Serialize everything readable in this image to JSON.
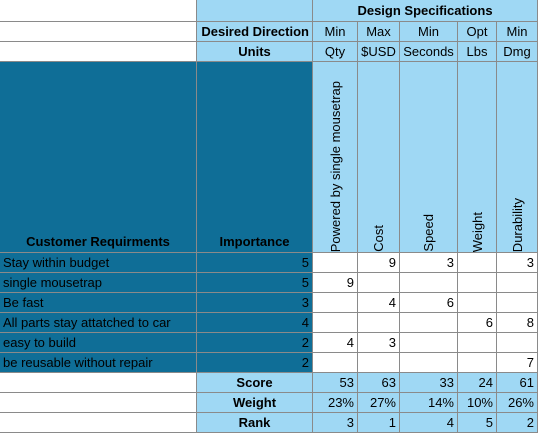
{
  "header": {
    "title": "Design Specifications",
    "direction_label": "Desired Direction",
    "units_label": "Units"
  },
  "columns": [
    {
      "direction": "Min",
      "unit": "Qty",
      "name": "Powered by single mousetrap"
    },
    {
      "direction": "Max",
      "unit": "$USD",
      "name": "Cost"
    },
    {
      "direction": "Min",
      "unit": "Seconds",
      "name": "Speed"
    },
    {
      "direction": "Opt",
      "unit": "Lbs",
      "name": "Weight"
    },
    {
      "direction": "Min",
      "unit": "Dmg",
      "name": "Durability"
    }
  ],
  "requirements_label": "Customer Requirments",
  "importance_label": "Importance",
  "rows": [
    {
      "requirement": "Stay within budget",
      "importance": 5,
      "cells": [
        null,
        9,
        3,
        null,
        3
      ]
    },
    {
      "requirement": "single mousetrap",
      "importance": 5,
      "cells": [
        9,
        null,
        null,
        null,
        null
      ]
    },
    {
      "requirement": "Be fast",
      "importance": 3,
      "cells": [
        null,
        4,
        6,
        null,
        null
      ]
    },
    {
      "requirement": "All parts stay attatched to car",
      "importance": 4,
      "cells": [
        null,
        null,
        null,
        6,
        8
      ]
    },
    {
      "requirement": "easy to build",
      "importance": 2,
      "cells": [
        4,
        3,
        null,
        null,
        null
      ]
    },
    {
      "requirement": "be reusable without repair",
      "importance": 2,
      "cells": [
        null,
        null,
        null,
        null,
        7
      ]
    }
  ],
  "summary": [
    {
      "label": "Score",
      "values": [
        53,
        63,
        33,
        24,
        61
      ]
    },
    {
      "label": "Weight",
      "values": [
        "23%",
        "27%",
        "14%",
        "10%",
        "26%"
      ]
    },
    {
      "label": "Rank",
      "values": [
        3,
        1,
        4,
        5,
        2
      ]
    }
  ]
}
